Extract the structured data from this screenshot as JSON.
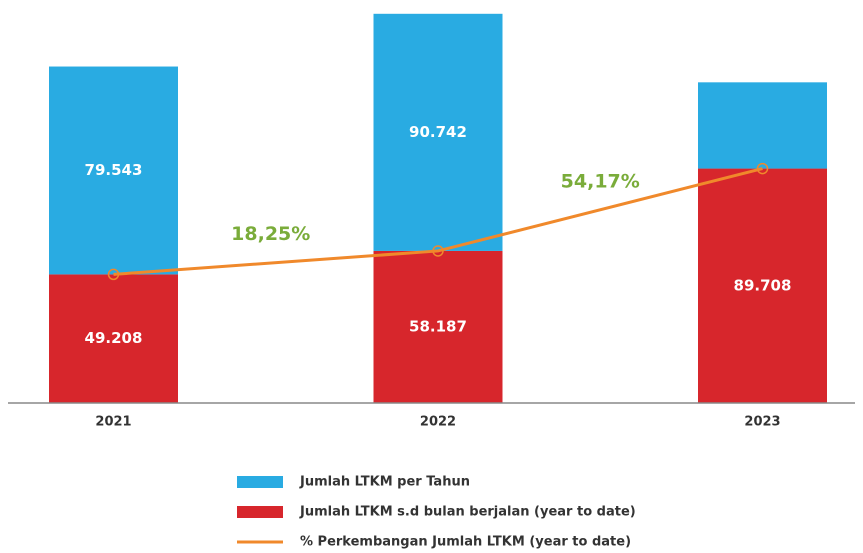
{
  "chart_data": {
    "type": "bar",
    "categories": [
      "2021",
      "2022",
      "2023"
    ],
    "ylim": [
      0,
      150000
    ],
    "series": [
      {
        "name": "Jumlah LTKM s.d bulan berjalan (year to date)",
        "color": "#d7262c",
        "values": [
          49208,
          58187,
          89708
        ],
        "value_labels": [
          "49.208",
          "58.187",
          "89.708"
        ]
      },
      {
        "name": "Jumlah LTKM per Tahun",
        "color": "#29abe2",
        "values": [
          79543,
          90742,
          33000
        ],
        "value_labels": [
          "79.543",
          "90.742",
          null
        ]
      },
      {
        "name": "% Perkembangan Jumlah LTKM (year to date)",
        "type": "line",
        "color": "#f0892b",
        "values": [
          49208,
          58187,
          89708
        ]
      }
    ],
    "annotations": [
      "18,25%",
      "54,17%"
    ],
    "annotation_color": "#7aac3a",
    "legend_order": [
      1,
      0,
      2
    ]
  }
}
